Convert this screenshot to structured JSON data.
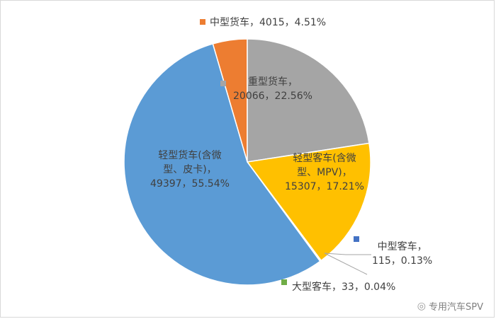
{
  "chart_data": {
    "type": "pie",
    "slices": [
      {
        "key": "medium_truck",
        "label": "中型货车",
        "value": 4015,
        "percent": "4.51%",
        "color": "#ED7D31"
      },
      {
        "key": "heavy_truck",
        "label": "重型货车",
        "value": 20066,
        "percent": "22.56%",
        "color": "#A5A5A5"
      },
      {
        "key": "light_bus",
        "label": "轻型客车(含微型、MPV)",
        "value": 15307,
        "percent": "17.21%",
        "color": "#FFC000"
      },
      {
        "key": "medium_bus",
        "label": "中型客车",
        "value": 115,
        "percent": "0.13%",
        "color": "#4472C4"
      },
      {
        "key": "large_bus",
        "label": "大型客车",
        "value": 33,
        "percent": "0.04%",
        "color": "#70AD47"
      },
      {
        "key": "light_truck",
        "label": "轻型货车(含微型、皮卡)",
        "value": 49397,
        "percent": "55.54%",
        "color": "#5B9BD5"
      }
    ]
  },
  "labels": {
    "medium_truck": "中型货车，4015，4.51%",
    "heavy_truck_l1": "重型货车，",
    "heavy_truck_l2": "20066，22.56%",
    "light_bus_l1": "轻型客车(含微",
    "light_bus_l2": "型、MPV)，",
    "light_bus_l3": "15307，17.21%",
    "medium_bus_l1": "中型客车，",
    "medium_bus_l2": "115，0.13%",
    "large_bus": "大型客车，33，0.04%",
    "light_truck_l1": "轻型货车(含微",
    "light_truck_l2": "型、皮卡)，",
    "light_truck_l3": "49397，55.54%"
  },
  "watermark": {
    "icon": "wechat-icon",
    "text": "专用汽车SPV"
  }
}
